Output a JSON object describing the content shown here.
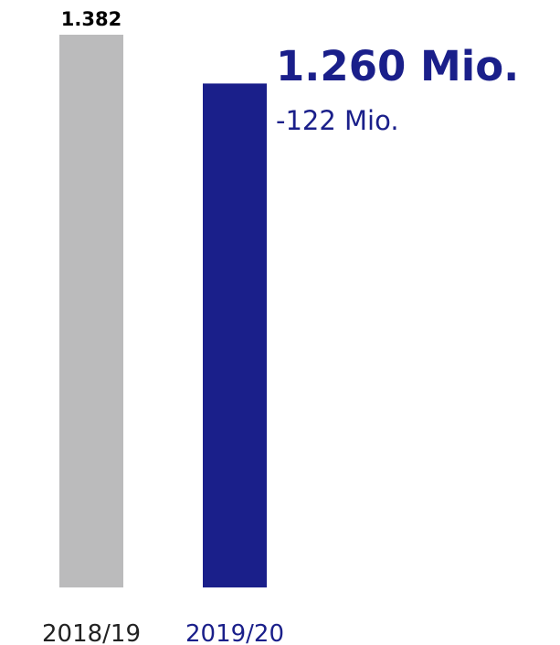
{
  "chart_data": {
    "type": "bar",
    "categories": [
      "2018/19",
      "2019/20"
    ],
    "values": [
      1382,
      1260
    ],
    "value_labels": [
      "1.382",
      ""
    ],
    "highlight": {
      "value_label": "1.260 Mio.",
      "change_label": "-122 Mio."
    },
    "title": "",
    "xlabel": "",
    "ylabel": "",
    "ylim": [
      0,
      1382
    ],
    "grid": false,
    "legend": "none"
  },
  "colors": {
    "bar_previous": "#bbbbbc",
    "bar_current": "#1a1f8a",
    "label_previous": "#222222",
    "label_current": "#1a1f8a",
    "value_label": "#000000",
    "highlight_text": "#1a1f8a"
  }
}
